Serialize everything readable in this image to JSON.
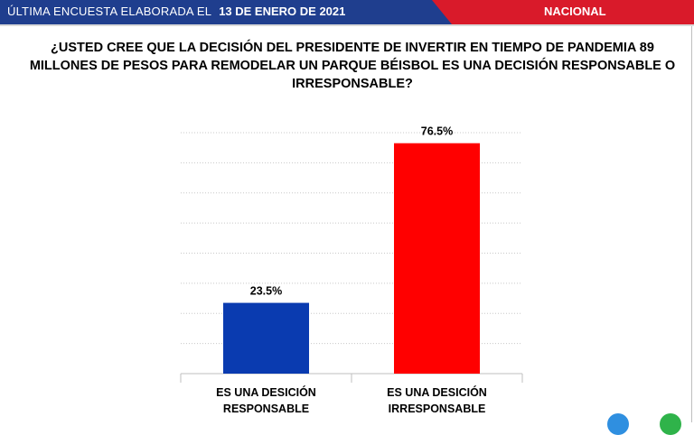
{
  "header": {
    "survey_label": "ÚLTIMA ENCUESTA ELABORADA EL",
    "survey_date": "13 DE ENERO DE 2021",
    "region": "NACIONAL"
  },
  "question": "¿USTED CREE QUE LA DECISIÓN DEL PRESIDENTE DE INVERTIR EN TIEMPO DE PANDEMIA 89 MILLONES DE PESOS PARA REMODELAR UN PARQUE BÉISBOL ES UNA DECISIÓN RESPONSABLE O IRRESPONSABLE?",
  "colors": {
    "banner_blue": "#1f3e8e",
    "banner_red": "#d91a2a",
    "bar_responsable": "#0a3bb0",
    "bar_irresponsable": "#ff0000"
  },
  "chart_data": {
    "type": "bar",
    "title": "",
    "xlabel": "",
    "ylabel": "",
    "categories": [
      [
        "ES UNA DESICIÓN",
        "RESPONSABLE"
      ],
      [
        "ES UNA DESICIÓN",
        "IRRESPONSABLE"
      ]
    ],
    "values": [
      23.5,
      76.5
    ],
    "value_labels": [
      "23.5%",
      "76.5%"
    ],
    "ylim": [
      0,
      80
    ],
    "grid": true
  }
}
